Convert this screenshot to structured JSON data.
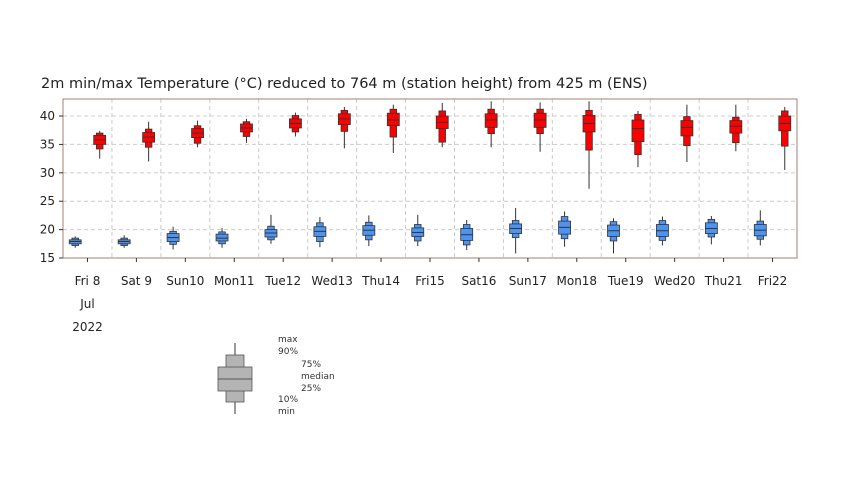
{
  "chart_data": {
    "type": "boxplot",
    "title": "2m min/max Temperature (°C) reduced to 764 m (station height) from 425 m (ENS)",
    "yticks": [
      15,
      20,
      25,
      30,
      35,
      40
    ],
    "ylim": [
      15,
      43
    ],
    "grid": true,
    "days": [
      {
        "label": "Fri 8",
        "weekend": false
      },
      {
        "label": "Sat 9",
        "weekend": false
      },
      {
        "label": "Sun10",
        "weekend": true
      },
      {
        "label": "Mon11",
        "weekend": false
      },
      {
        "label": "Tue12",
        "weekend": false
      },
      {
        "label": "Wed13",
        "weekend": false
      },
      {
        "label": "Thu14",
        "weekend": false
      },
      {
        "label": "Fri15",
        "weekend": false
      },
      {
        "label": "Sat16",
        "weekend": false
      },
      {
        "label": "Sun17",
        "weekend": true
      },
      {
        "label": "Mon18",
        "weekend": false
      },
      {
        "label": "Tue19",
        "weekend": false
      },
      {
        "label": "Wed20",
        "weekend": false
      },
      {
        "label": "Thu21",
        "weekend": false
      },
      {
        "label": "Fri22",
        "weekend": false
      }
    ],
    "date_label_lines": [
      "Jul",
      "2022"
    ],
    "series": [
      {
        "name": "min",
        "color": "#4d94f0",
        "day_offset": -0.25,
        "boxes": [
          {
            "min": 16.8,
            "p10": 17.2,
            "p25": 17.5,
            "median": 17.9,
            "p75": 18.2,
            "p90": 18.5,
            "max": 18.8
          },
          {
            "min": 16.8,
            "p10": 17.2,
            "p25": 17.5,
            "median": 17.9,
            "p75": 18.2,
            "p90": 18.5,
            "max": 19.0
          },
          {
            "min": 16.5,
            "p10": 17.4,
            "p25": 17.9,
            "median": 18.6,
            "p75": 19.3,
            "p90": 19.7,
            "max": 20.5
          },
          {
            "min": 16.8,
            "p10": 17.5,
            "p25": 18.0,
            "median": 18.5,
            "p75": 19.2,
            "p90": 19.6,
            "max": 20.3
          },
          {
            "min": 17.5,
            "p10": 18.2,
            "p25": 18.7,
            "median": 19.4,
            "p75": 20.0,
            "p90": 20.6,
            "max": 22.6
          },
          {
            "min": 16.9,
            "p10": 17.9,
            "p25": 18.8,
            "median": 19.7,
            "p75": 20.5,
            "p90": 21.2,
            "max": 22.2
          },
          {
            "min": 17.1,
            "p10": 18.2,
            "p25": 19.0,
            "median": 19.9,
            "p75": 20.7,
            "p90": 21.3,
            "max": 22.5
          },
          {
            "min": 17.1,
            "p10": 18.0,
            "p25": 18.8,
            "median": 19.5,
            "p75": 20.3,
            "p90": 20.9,
            "max": 22.6
          },
          {
            "min": 16.4,
            "p10": 17.3,
            "p25": 18.1,
            "median": 19.1,
            "p75": 20.2,
            "p90": 20.9,
            "max": 21.7
          },
          {
            "min": 15.8,
            "p10": 18.6,
            "p25": 19.3,
            "median": 20.2,
            "p75": 21.0,
            "p90": 21.6,
            "max": 23.8
          },
          {
            "min": 17.0,
            "p10": 18.4,
            "p25": 19.2,
            "median": 20.4,
            "p75": 21.5,
            "p90": 22.3,
            "max": 23.2
          },
          {
            "min": 15.8,
            "p10": 18.0,
            "p25": 18.8,
            "median": 19.8,
            "p75": 20.8,
            "p90": 21.4,
            "max": 22.0
          },
          {
            "min": 17.2,
            "p10": 18.1,
            "p25": 18.8,
            "median": 19.8,
            "p75": 20.9,
            "p90": 21.6,
            "max": 22.3
          },
          {
            "min": 17.4,
            "p10": 18.7,
            "p25": 19.3,
            "median": 20.2,
            "p75": 21.2,
            "p90": 21.8,
            "max": 22.4
          },
          {
            "min": 17.2,
            "p10": 18.3,
            "p25": 18.9,
            "median": 19.9,
            "p75": 20.9,
            "p90": 21.5,
            "max": 23.4
          }
        ]
      },
      {
        "name": "max",
        "color": "#ff0000",
        "day_offset": 0.25,
        "boxes": [
          {
            "min": 32.5,
            "p10": 34.2,
            "p25": 35.0,
            "median": 35.8,
            "p75": 36.6,
            "p90": 37.0,
            "max": 37.4
          },
          {
            "min": 32.0,
            "p10": 34.5,
            "p25": 35.4,
            "median": 36.3,
            "p75": 37.1,
            "p90": 37.7,
            "max": 39.0
          },
          {
            "min": 34.5,
            "p10": 35.2,
            "p25": 36.2,
            "median": 37.0,
            "p75": 37.8,
            "p90": 38.3,
            "max": 39.2
          },
          {
            "min": 35.3,
            "p10": 36.4,
            "p25": 37.2,
            "median": 37.9,
            "p75": 38.6,
            "p90": 39.0,
            "max": 39.5
          },
          {
            "min": 36.4,
            "p10": 37.2,
            "p25": 37.9,
            "median": 38.7,
            "p75": 39.5,
            "p90": 40.1,
            "max": 40.6
          },
          {
            "min": 34.3,
            "p10": 37.3,
            "p25": 38.5,
            "median": 39.5,
            "p75": 40.4,
            "p90": 41.0,
            "max": 41.6
          },
          {
            "min": 33.5,
            "p10": 36.3,
            "p25": 38.3,
            "median": 39.3,
            "p75": 40.5,
            "p90": 41.2,
            "max": 42.0
          },
          {
            "min": 34.5,
            "p10": 35.4,
            "p25": 37.8,
            "median": 38.9,
            "p75": 40.0,
            "p90": 40.9,
            "max": 42.3
          },
          {
            "min": 34.5,
            "p10": 36.9,
            "p25": 38.0,
            "median": 39.3,
            "p75": 40.4,
            "p90": 41.2,
            "max": 42.6
          },
          {
            "min": 33.7,
            "p10": 36.9,
            "p25": 38.0,
            "median": 39.3,
            "p75": 40.5,
            "p90": 41.2,
            "max": 42.4
          },
          {
            "min": 27.2,
            "p10": 34.0,
            "p25": 37.2,
            "median": 38.7,
            "p75": 40.1,
            "p90": 41.0,
            "max": 42.6
          },
          {
            "min": 31.0,
            "p10": 33.2,
            "p25": 35.5,
            "median": 37.8,
            "p75": 39.3,
            "p90": 40.3,
            "max": 40.9
          },
          {
            "min": 31.9,
            "p10": 34.8,
            "p25": 36.5,
            "median": 38.0,
            "p75": 39.2,
            "p90": 39.9,
            "max": 42.0
          },
          {
            "min": 33.8,
            "p10": 35.3,
            "p25": 37.0,
            "median": 38.2,
            "p75": 39.2,
            "p90": 39.8,
            "max": 42.0
          },
          {
            "min": 30.5,
            "p10": 34.7,
            "p25": 37.4,
            "median": 38.7,
            "p75": 40.0,
            "p90": 40.9,
            "max": 41.6
          }
        ]
      }
    ],
    "legend": {
      "labels": [
        "max",
        "90%",
        "75%",
        "median",
        "25%",
        "10%",
        "min"
      ],
      "color": "#b4b4b4"
    }
  },
  "colors": {
    "weekend_label": "#ff0000",
    "axis": "#a08070",
    "grid": "#cccccc"
  }
}
